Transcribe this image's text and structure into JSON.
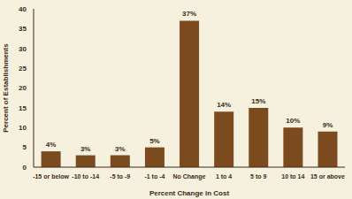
{
  "chart_data": {
    "type": "bar",
    "x_label": "Percent Change in Cost",
    "y_label": "Percent of Establishments",
    "categories": [
      "-15 or below",
      "-10 to -14",
      "-5 to -9",
      "-1 to -4",
      "No Change",
      "1 to 4",
      "5 to 9",
      "10 to 14",
      "15 or above"
    ],
    "values": [
      4,
      3,
      3,
      5,
      37,
      14,
      15,
      10,
      9
    ],
    "value_labels": [
      "4%",
      "3%",
      "3%",
      "5%",
      "37%",
      "14%",
      "15%",
      "10%",
      "9%"
    ],
    "color": "#7b4a1f",
    "ylim": [
      0,
      40
    ],
    "yticks": [
      0,
      5,
      10,
      15,
      20,
      25,
      30,
      35,
      40
    ],
    "grid": false,
    "data_labels": true
  }
}
